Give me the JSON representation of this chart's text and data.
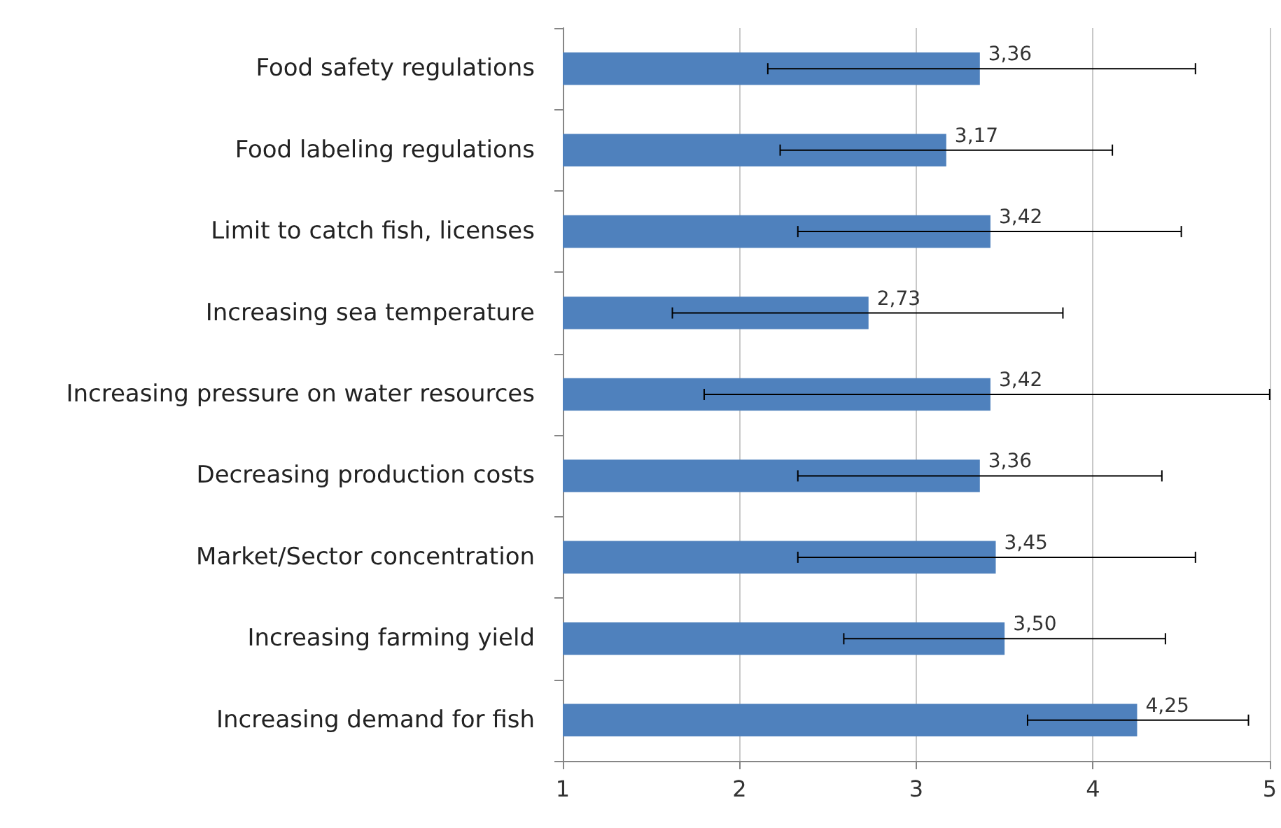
{
  "chart_data": {
    "type": "bar",
    "orientation": "horizontal",
    "categories": [
      "Food safety regulations",
      "Food labeling regulations",
      "Limit to catch fish, licenses",
      "Increasing sea temperature",
      "Increasing pressure on water resources",
      "Decreasing production costs",
      "Market/Sector concentration",
      "Increasing farming yield",
      "Increasing demand for fish"
    ],
    "values": [
      3.36,
      3.17,
      3.42,
      2.73,
      3.42,
      3.36,
      3.45,
      3.5,
      4.25
    ],
    "value_labels": [
      "3,36",
      "3,17",
      "3,42",
      "2,73",
      "3,42",
      "3,36",
      "3,45",
      "3,50",
      "4,25"
    ],
    "errors": [
      [
        2.16,
        4.58
      ],
      [
        2.23,
        4.11
      ],
      [
        2.33,
        4.5
      ],
      [
        1.62,
        3.83
      ],
      [
        1.8,
        5
      ],
      [
        2.33,
        4.39
      ],
      [
        2.33,
        4.58
      ],
      [
        2.59,
        4.41
      ],
      [
        3.63,
        4.88
      ]
    ],
    "color": "#4f81bd",
    "xlim": [
      1,
      5
    ],
    "xticks": [
      1,
      2,
      3,
      4,
      5
    ],
    "grid": "x"
  }
}
